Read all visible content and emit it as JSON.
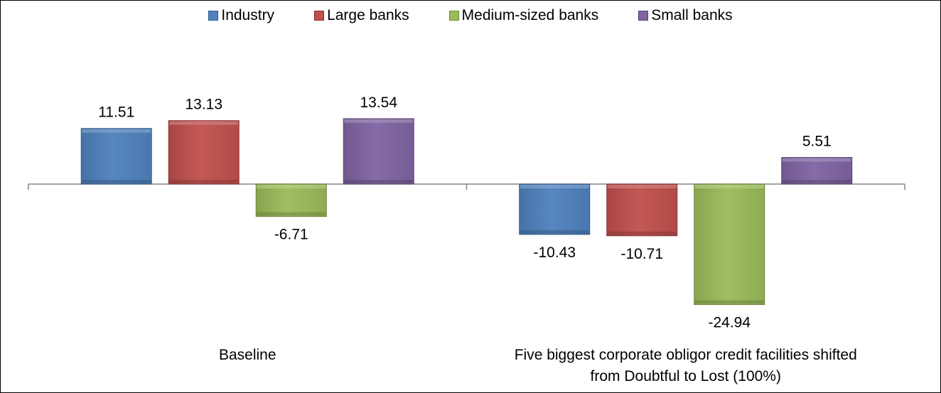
{
  "chart_data": {
    "type": "bar",
    "categories": [
      "Baseline",
      "Five biggest corporate obligor credit facilities shifted from Doubtful to Lost (100%)"
    ],
    "category_label_lines": [
      [
        "Baseline"
      ],
      [
        "Five biggest corporate obligor credit facilities shifted",
        "from Doubtful to Lost (100%)"
      ]
    ],
    "series": [
      {
        "name": "Industry",
        "values": [
          11.51,
          -10.43
        ],
        "color": "#4f81bd"
      },
      {
        "name": "Large banks",
        "values": [
          13.13,
          -10.71
        ],
        "color": "#c0504d"
      },
      {
        "name": "Medium-sized banks",
        "values": [
          -6.71,
          -24.94
        ],
        "color": "#9bbb59"
      },
      {
        "name": "Small banks",
        "values": [
          13.54,
          5.51
        ],
        "color": "#8064a2"
      }
    ],
    "data_label_texts": [
      [
        "11.51",
        "-10.43"
      ],
      [
        "13.13",
        "-10.71"
      ],
      [
        "-6.71",
        "-24.94"
      ],
      [
        "13.54",
        "5.51"
      ]
    ],
    "legend_position": "top",
    "grid": false,
    "value_axis_visible": false,
    "ylim": [
      -30,
      28
    ]
  }
}
